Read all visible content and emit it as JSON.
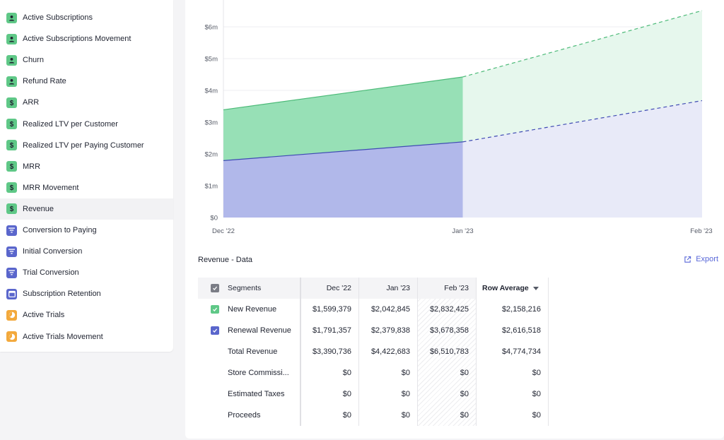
{
  "sidebar": {
    "items": [
      {
        "label": "Active Subscriptions",
        "icon": "person-icon",
        "color": "#5fc887"
      },
      {
        "label": "Active Subscriptions Movement",
        "icon": "person-icon",
        "color": "#5fc887"
      },
      {
        "label": "Churn",
        "icon": "person-icon",
        "color": "#5fc887"
      },
      {
        "label": "Refund Rate",
        "icon": "person-icon",
        "color": "#5fc887"
      },
      {
        "label": "ARR",
        "icon": "dollar-icon",
        "color": "#5fc887"
      },
      {
        "label": "Realized LTV per Customer",
        "icon": "dollar-icon",
        "color": "#5fc887"
      },
      {
        "label": "Realized LTV per Paying Customer",
        "icon": "dollar-icon",
        "color": "#5fc887"
      },
      {
        "label": "MRR",
        "icon": "dollar-icon",
        "color": "#5fc887"
      },
      {
        "label": "MRR Movement",
        "icon": "dollar-icon",
        "color": "#5fc887"
      },
      {
        "label": "Revenue",
        "icon": "dollar-icon",
        "color": "#5fc887",
        "active": true
      },
      {
        "label": "Conversion to Paying",
        "icon": "filter-icon",
        "color": "#5a66cc"
      },
      {
        "label": "Initial Conversion",
        "icon": "filter-icon",
        "color": "#5a66cc"
      },
      {
        "label": "Trial Conversion",
        "icon": "filter-icon",
        "color": "#5a66cc"
      },
      {
        "label": "Subscription Retention",
        "icon": "calendar-icon",
        "color": "#5a66cc"
      },
      {
        "label": "Active Trials",
        "icon": "clock-icon",
        "color": "#f3a93c"
      },
      {
        "label": "Active Trials Movement",
        "icon": "clock-icon",
        "color": "#f3a93c"
      }
    ]
  },
  "chart_data": {
    "type": "area",
    "stacked": true,
    "x": [
      "Dec '22",
      "Jan '23",
      "Feb '23"
    ],
    "y_ticks": [
      "$0",
      "$1m",
      "$2m",
      "$3m",
      "$4m",
      "$5m",
      "$6m"
    ],
    "ylim": [
      0,
      6510783
    ],
    "projected_from_index": 1,
    "series": [
      {
        "name": "Renewal Revenue",
        "values": [
          1791357,
          2379838,
          3678358
        ],
        "color": "#5a66cc"
      },
      {
        "name": "New Revenue",
        "values": [
          1599379,
          2042845,
          2832425
        ],
        "color": "#5fc887"
      }
    ],
    "grid": true
  },
  "data_section": {
    "title": "Revenue - Data",
    "export_label": "Export"
  },
  "table": {
    "columns": [
      "Segments",
      "Dec '22",
      "Jan '23",
      "Feb '23",
      "Row Average"
    ],
    "rows": [
      {
        "label": "New Revenue",
        "checkbox": "green",
        "values": [
          "$1,599,379",
          "$2,042,845",
          "$2,832,425",
          "$2,158,216"
        ]
      },
      {
        "label": "Renewal Revenue",
        "checkbox": "blue",
        "values": [
          "$1,791,357",
          "$2,379,838",
          "$3,678,358",
          "$2,616,518"
        ]
      },
      {
        "label": "Total Revenue",
        "checkbox": "",
        "values": [
          "$3,390,736",
          "$4,422,683",
          "$6,510,783",
          "$4,774,734"
        ]
      },
      {
        "label": "Store Commissi...",
        "checkbox": "",
        "values": [
          "$0",
          "$0",
          "$0",
          "$0"
        ]
      },
      {
        "label": "Estimated Taxes",
        "checkbox": "",
        "values": [
          "$0",
          "$0",
          "$0",
          "$0"
        ]
      },
      {
        "label": "Proceeds",
        "checkbox": "",
        "values": [
          "$0",
          "$0",
          "$0",
          "$0"
        ]
      }
    ]
  }
}
